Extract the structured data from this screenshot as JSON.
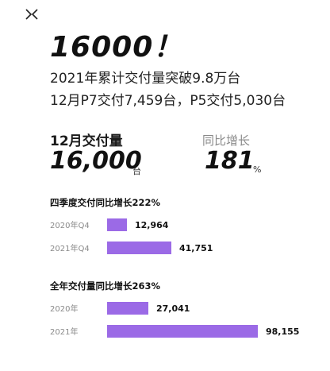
{
  "headline": "16000！",
  "subline_1": "2021年累计交付量突破9.8万台",
  "subline_2": "12月P7交付7,459台，P5交付5,030台",
  "kpi": {
    "left_label": "12月交付量",
    "left_value": "16,000",
    "left_unit": "台",
    "right_label": "同比增长",
    "right_value": "181",
    "right_unit": "%"
  },
  "colors": {
    "bar": "#9b6ae6"
  },
  "chart_data": [
    {
      "type": "bar",
      "orientation": "horizontal",
      "title": "四季度交付同比增长222%",
      "categories": [
        "2020年Q4",
        "2021年Q4"
      ],
      "values": [
        12964,
        41751
      ],
      "value_labels": [
        "12,964",
        "41,751"
      ]
    },
    {
      "type": "bar",
      "orientation": "horizontal",
      "title": "全年交付量同比增长263%",
      "categories": [
        "2020年",
        "2021年"
      ],
      "values": [
        27041,
        98155
      ],
      "value_labels": [
        "27,041",
        "98,155"
      ]
    }
  ]
}
